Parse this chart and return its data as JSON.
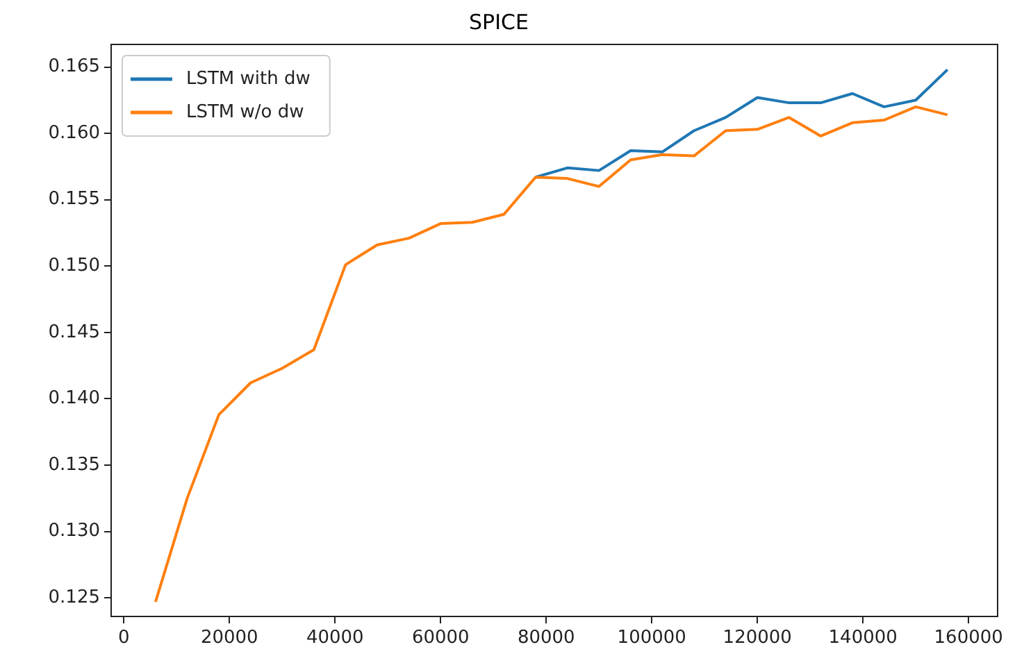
{
  "chart_data": {
    "type": "line",
    "title": "SPICE",
    "x": [
      6000,
      12000,
      18000,
      24000,
      30000,
      36000,
      42000,
      48000,
      54000,
      60000,
      66000,
      72000,
      78000,
      84000,
      90000,
      96000,
      102000,
      108000,
      114000,
      120000,
      126000,
      132000,
      138000,
      144000,
      150000,
      156000
    ],
    "series": [
      {
        "name": "LSTM with dw",
        "color": "#1f77b4",
        "values": [
          null,
          null,
          null,
          null,
          null,
          null,
          null,
          null,
          null,
          null,
          null,
          null,
          0.1567,
          0.1574,
          0.1572,
          0.1587,
          0.1586,
          0.1602,
          0.1612,
          0.1627,
          0.1623,
          0.1623,
          0.163,
          0.162,
          0.1625,
          0.1648
        ]
      },
      {
        "name": "LSTM w/o dw",
        "color": "#ff7f0e",
        "values": [
          0.1247,
          0.1325,
          0.1388,
          0.1412,
          0.1423,
          0.1437,
          0.1501,
          0.1516,
          0.1521,
          0.1532,
          0.1533,
          0.1539,
          0.1567,
          0.1566,
          0.156,
          0.158,
          0.1584,
          0.1583,
          0.1602,
          0.1603,
          0.1612,
          0.1598,
          0.1608,
          0.161,
          0.162,
          0.1614
        ]
      }
    ],
    "xlim": [
      -2400,
      165500
    ],
    "xticks": [
      0,
      20000,
      40000,
      60000,
      80000,
      100000,
      120000,
      140000,
      160000
    ],
    "ylim": [
      0.1236,
      0.1667
    ],
    "yticks": [
      0.125,
      {
        "value": 0.13,
        "label": "0.130"
      },
      0.135,
      {
        "value": 0.14,
        "label": "0.140"
      },
      0.145,
      {
        "value": 0.15,
        "label": "0.150"
      },
      0.155,
      {
        "value": 0.16,
        "label": "0.160"
      },
      0.165
    ],
    "grid": false,
    "legend": "top left",
    "marker": "none",
    "line_style": "solid"
  }
}
